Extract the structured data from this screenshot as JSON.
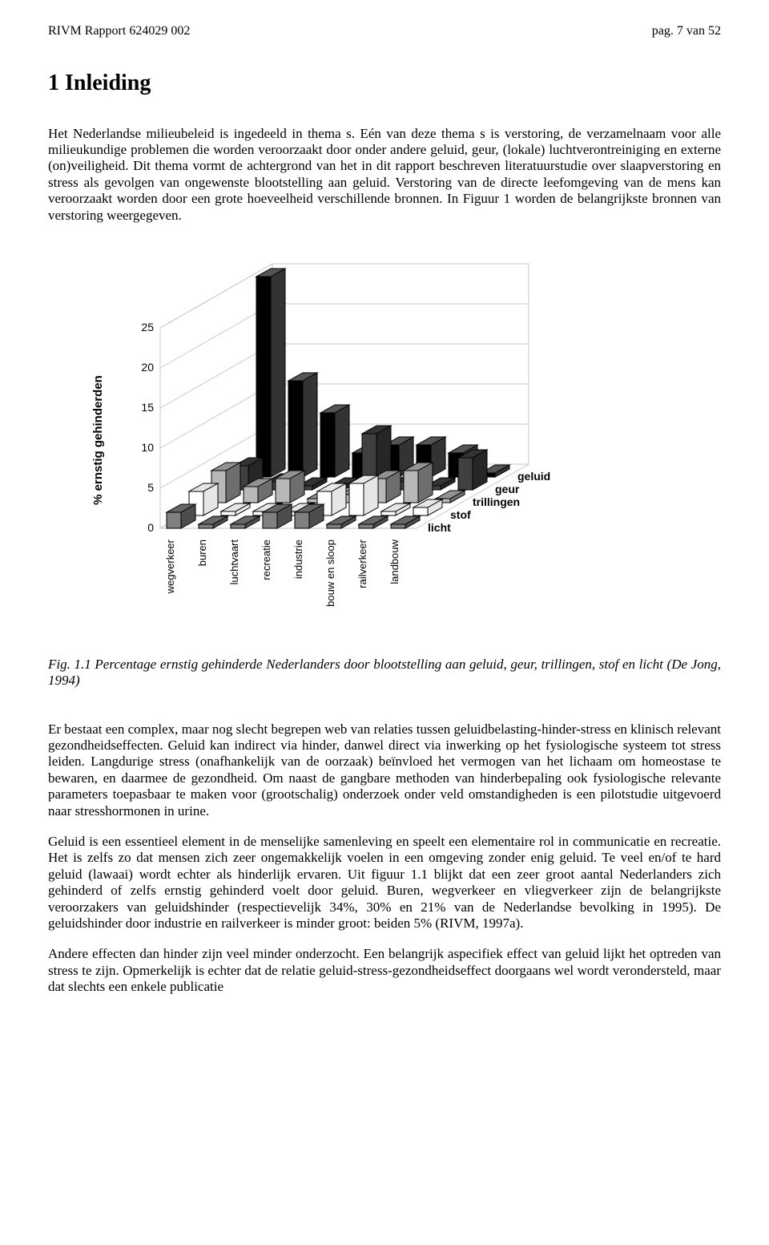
{
  "header": {
    "left": "RIVM Rapport 624029 002",
    "right": "pag. 7 van 52"
  },
  "heading": "1  Inleiding",
  "para1": "Het Nederlandse milieubeleid is ingedeeld in thema s. Eén van deze thema s is verstoring, de verzamelnaam voor alle milieukundige problemen die worden veroorzaakt door onder andere geluid, geur, (lokale) luchtverontreiniging en externe (on)veiligheid. Dit thema vormt de achtergrond van het in dit rapport beschreven literatuurstudie over slaapverstoring en stress als gevolgen van ongewenste blootstelling aan geluid. Verstoring van de directe leefomgeving van de mens kan veroorzaakt worden door een grote hoeveelheid verschillende bronnen. In Figuur 1 worden de belangrijkste bronnen van verstoring weergegeven.",
  "chart": {
    "type": "3d-bar",
    "y_axis_label": "% ernstig gehinderden",
    "ylim": [
      0,
      25
    ],
    "yticks": [
      0,
      5,
      10,
      15,
      20,
      25
    ],
    "x_categories": [
      "wegverkeer",
      "buren",
      "luchtvaart",
      "recreatie",
      "industrie",
      "bouw en sloop",
      "railverkeer",
      "landbouw"
    ],
    "z_series": [
      "licht",
      "stof",
      "trillingen",
      "geur",
      "geluid"
    ],
    "series_colors": {
      "licht": "#808080",
      "stof": "#ffffff",
      "trillingen": "#b8b8b8",
      "geur": "#404040",
      "geluid": "#000000"
    },
    "axis_color": "#000000",
    "grid_color": "#c8c8c8",
    "background_color": "#ffffff",
    "bar_stroke": "#000000",
    "data_comment": "values estimated from scanned figure; rows are z_series, columns are x_categories",
    "data": {
      "geluid": [
        25,
        12,
        8,
        3,
        4,
        4,
        3,
        0.5
      ],
      "geur": [
        3,
        1,
        0.5,
        0.5,
        7,
        1,
        0.5,
        4
      ],
      "trillingen": [
        4,
        2,
        3,
        0.5,
        1,
        3,
        4,
        0.5
      ],
      "stof": [
        3,
        0.5,
        0.5,
        0.5,
        3,
        4,
        0.5,
        1
      ],
      "licht": [
        2,
        0.5,
        0.5,
        2,
        2,
        0.5,
        0.5,
        0.5
      ]
    },
    "label_fontsize_pt": 12,
    "axis_fontsize_pt": 12,
    "stroke_width": 1
  },
  "figcaption": "Fig. 1.1 Percentage ernstig gehinderde Nederlanders door blootstelling aan geluid, geur, trillingen, stof en licht (De Jong, 1994)",
  "para2": "Er bestaat een complex, maar nog  slecht begrepen web van relaties tussen geluidbelasting-hinder-stress en klinisch relevant gezondheidseffecten. Geluid kan indirect via hinder, danwel direct via inwerking op het fysiologische systeem tot stress leiden. Langdurige stress (onafhankelijk van de oorzaak) beïnvloed het vermogen van het lichaam om homeostase te bewaren, en daarmee de gezondheid. Om naast de gangbare methoden van hinderbepaling ook fysiologische relevante parameters toepasbaar te maken voor (grootschalig) onderzoek onder veld omstandigheden is een pilotstudie uitgevoerd naar stresshormonen in urine.",
  "para3": "Geluid is een essentieel element in de menselijke samenleving en speelt een elementaire rol in communicatie en recreatie. Het is zelfs zo dat mensen zich zeer ongemakkelijk voelen in een omgeving zonder enig geluid. Te veel en/of te hard geluid (lawaai) wordt echter als hinderlijk ervaren. Uit  figuur 1.1 blijkt dat een zeer groot aantal Nederlanders zich gehinderd of zelfs ernstig gehinderd voelt door geluid. Buren, wegverkeer en vliegverkeer zijn de belangrijkste veroorzakers van geluidshinder (respectievelijk 34%, 30% en 21% van de Nederlandse bevolking in 1995). De geluidshinder door industrie en railverkeer is minder groot: beiden 5% (RIVM, 1997a).",
  "para4": "Andere effecten dan hinder zijn veel minder onderzocht. Een belangrijk aspecifiek effect van geluid lijkt het optreden van stress te zijn. Opmerkelijk is echter dat de relatie geluid-stress-gezondheidseffect doorgaans wel wordt verondersteld, maar dat slechts een enkele publicatie"
}
